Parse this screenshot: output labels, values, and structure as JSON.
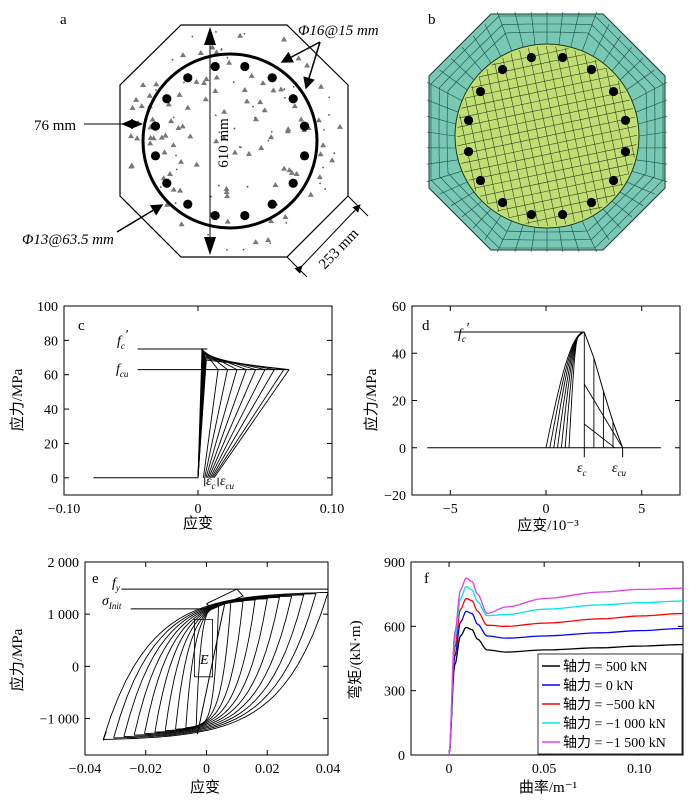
{
  "panel_a": {
    "letter": "a",
    "label_long_rebar": "Φ16@15 mm",
    "label_stirrup": "Φ13@63.5 mm",
    "label_cover": "76 mm",
    "label_diameter": "610 mm",
    "label_side": "253 mm"
  },
  "panel_b": {
    "letter": "b"
  },
  "chart_data": [
    {
      "panel": "c",
      "type": "line",
      "xlabel": "应变",
      "ylabel": "应力/MPa",
      "xlim": [
        -0.1,
        0.1
      ],
      "ylim": [
        -10,
        100
      ],
      "xticks": [
        "−0.10",
        "0",
        "0.10"
      ],
      "xtick_values": [
        -0.1,
        0,
        0.1
      ],
      "yticks": [
        "0",
        "20",
        "40",
        "60",
        "80",
        "100"
      ],
      "ytick_values": [
        0,
        20,
        40,
        60,
        80,
        100
      ],
      "annotations": {
        "fc_base": "f",
        "fc_sub": "c",
        "fc_prime": "′",
        "fcu_base": "f",
        "fcu_sub": "cu",
        "ec_base": "ε",
        "ec_sub": "c",
        "ecu_base": "ε",
        "ecu_sub": "cu"
      },
      "fc": 75,
      "fcu": 63,
      "ec": 0.005,
      "ecu": 0.015,
      "series": [
        {
          "x": [
            -0.078,
            0.0,
            0.003,
            0.005,
            0.015,
            0.068
          ],
          "y": [
            0,
            0,
            60,
            75,
            63,
            63
          ]
        }
      ],
      "cycles_end_strain": [
        0.015,
        0.022,
        0.029,
        0.036,
        0.043,
        0.05,
        0.057,
        0.064,
        0.068
      ]
    },
    {
      "panel": "d",
      "type": "line",
      "xlabel": "应变/10⁻³",
      "ylabel": "应力/MPa",
      "xlim": [
        -7,
        7
      ],
      "ylim": [
        -20,
        60
      ],
      "xticks": [
        "−5",
        "0",
        "5"
      ],
      "xtick_values": [
        -5,
        0,
        5
      ],
      "yticks": [
        "−20",
        "0",
        "20",
        "40",
        "60"
      ],
      "ytick_values": [
        -20,
        0,
        20,
        40,
        60
      ],
      "annotations": {
        "fc_base": "f",
        "fc_sub": "c",
        "fc_prime": "′",
        "ec_base": "ε",
        "ec_sub": "c",
        "ecu_base": "ε",
        "ecu_sub": "cu"
      },
      "fc": 49,
      "ec": 2.0,
      "ecu": 4.0,
      "series": [
        {
          "x": [
            -6.2,
            0,
            1.0,
            2.0,
            2.5,
            3.0,
            3.5,
            4.0,
            6.0
          ],
          "y": [
            0,
            0,
            35,
            49,
            38,
            24,
            11,
            0,
            0
          ]
        }
      ]
    },
    {
      "panel": "e",
      "type": "line",
      "xlabel": "应变",
      "ylabel": "应力/MPa",
      "xlim": [
        -0.04,
        0.04
      ],
      "ylim": [
        -1700,
        2000
      ],
      "xticks": [
        "−0.04",
        "−0.02",
        "0",
        "0.02",
        "0.04"
      ],
      "xtick_values": [
        -0.04,
        -0.02,
        0,
        0.02,
        0.04
      ],
      "yticks": [
        "−1 000",
        "0",
        "1 000",
        "2 000"
      ],
      "ytick_values": [
        -1000,
        0,
        1000,
        2000
      ],
      "annotations": {
        "fy_base": "f",
        "fy_sub": "y",
        "sig_base": "σ",
        "sig_sub": "Init",
        "E": "E"
      },
      "fy": 1480,
      "sigma_init": 1100,
      "envelope": {
        "x": [
          -0.034,
          -0.02,
          0,
          0.02,
          0.04
        ],
        "y": [
          -1420,
          -1350,
          1000,
          1350,
          1420
        ]
      }
    },
    {
      "panel": "f",
      "type": "line",
      "xlabel": "曲率/m⁻¹",
      "ylabel": "弯矩/(kN·m)",
      "xlim": [
        -0.02,
        0.123
      ],
      "ylim": [
        0,
        900
      ],
      "xticks": [
        "0",
        "0.05",
        "0.10"
      ],
      "xtick_values": [
        0,
        0.05,
        0.1
      ],
      "yticks": [
        "0",
        "300",
        "600",
        "900"
      ],
      "ytick_values": [
        0,
        300,
        600,
        900
      ],
      "legend_position": "bottom-right",
      "series": [
        {
          "name": "轴力 = 500 kN",
          "color": "#000000",
          "x": [
            0,
            0.003,
            0.006,
            0.009,
            0.012,
            0.015,
            0.02,
            0.03,
            0.05,
            0.08,
            0.1,
            0.123
          ],
          "y": [
            0,
            420,
            555,
            595,
            585,
            540,
            490,
            480,
            490,
            500,
            508,
            515
          ]
        },
        {
          "name": "轴力 = 0 kN",
          "color": "#0000ff",
          "x": [
            0,
            0.003,
            0.006,
            0.009,
            0.012,
            0.015,
            0.02,
            0.03,
            0.05,
            0.08,
            0.1,
            0.123
          ],
          "y": [
            0,
            460,
            620,
            670,
            660,
            610,
            555,
            545,
            555,
            570,
            580,
            590
          ]
        },
        {
          "name": "轴力 = −500 kN",
          "color": "#ff0000",
          "x": [
            0,
            0.003,
            0.006,
            0.009,
            0.012,
            0.015,
            0.02,
            0.03,
            0.05,
            0.08,
            0.1,
            0.123
          ],
          "y": [
            0,
            500,
            680,
            730,
            720,
            670,
            605,
            600,
            615,
            635,
            648,
            660
          ]
        },
        {
          "name": "轴力 = −1 000 kN",
          "color": "#00e5e5",
          "x": [
            0,
            0.003,
            0.006,
            0.009,
            0.012,
            0.015,
            0.02,
            0.03,
            0.05,
            0.08,
            0.1,
            0.123
          ],
          "y": [
            0,
            540,
            730,
            785,
            770,
            715,
            650,
            655,
            680,
            700,
            710,
            718
          ]
        },
        {
          "name": "轴力 = −1 500 kN",
          "color": "#e040e0",
          "x": [
            0,
            0.003,
            0.006,
            0.009,
            0.012,
            0.015,
            0.02,
            0.03,
            0.05,
            0.08,
            0.1,
            0.123
          ],
          "y": [
            0,
            570,
            770,
            825,
            810,
            750,
            660,
            690,
            730,
            760,
            772,
            778
          ]
        }
      ]
    }
  ]
}
